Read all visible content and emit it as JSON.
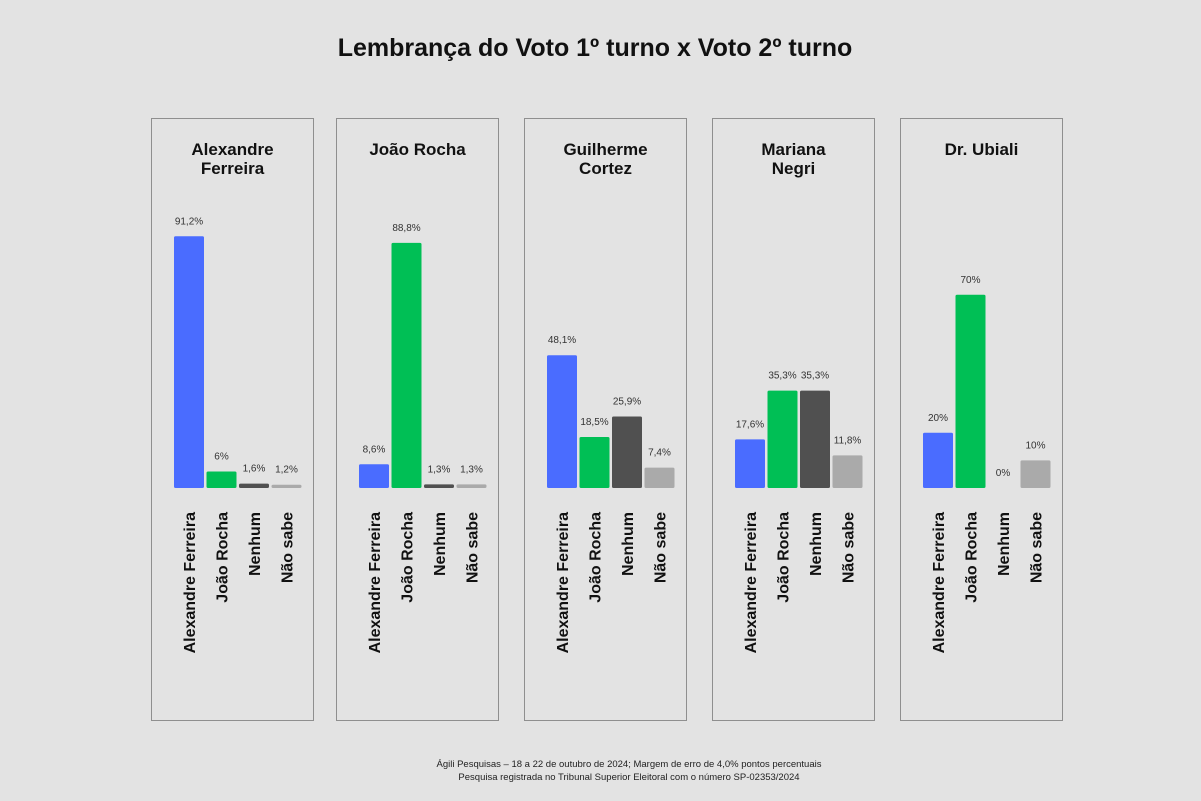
{
  "title": "Lembrança do Voto 1º turno x Voto 2º turno",
  "colors": {
    "alexandre": "#4a6cff",
    "joao": "#00bf55",
    "nenhum": "#505050",
    "nao_sabe": "#aaaaaa"
  },
  "chart_data": {
    "type": "bar",
    "title": "Lembrança do Voto 1º turno x Voto 2º turno",
    "categories": [
      "Alexandre Ferreira",
      "João Rocha",
      "Nenhum",
      "Não sabe"
    ],
    "ylim": [
      0,
      100
    ],
    "grid": false,
    "panels": [
      {
        "name": "Alexandre Ferreira",
        "title_lines": [
          "Alexandre",
          "Ferreira"
        ],
        "values": [
          91.2,
          6,
          1.6,
          1.2
        ],
        "labels": [
          "91,2%",
          "6%",
          "1,6%",
          "1,2%"
        ]
      },
      {
        "name": "João Rocha",
        "title_lines": [
          "João Rocha"
        ],
        "values": [
          8.6,
          88.8,
          1.3,
          1.3
        ],
        "labels": [
          "8,6%",
          "88,8%",
          "1,3%",
          "1,3%"
        ]
      },
      {
        "name": "Guilherme Cortez",
        "title_lines": [
          "Guilherme",
          "Cortez"
        ],
        "values": [
          48.1,
          18.5,
          25.9,
          7.4
        ],
        "labels": [
          "48,1%",
          "18,5%",
          "25,9%",
          "7,4%"
        ]
      },
      {
        "name": "Mariana Negri",
        "title_lines": [
          "Mariana",
          "Negri"
        ],
        "values": [
          17.6,
          35.3,
          35.3,
          11.8
        ],
        "labels": [
          "17,6%",
          "35,3%",
          "35,3%",
          "11,8%"
        ]
      },
      {
        "name": "Dr. Ubiali",
        "title_lines": [
          "Dr. Ubiali"
        ],
        "values": [
          20,
          70,
          0,
          10
        ],
        "labels": [
          "20%",
          "70%",
          "0%",
          "10%"
        ]
      }
    ]
  },
  "footer": {
    "line1": "Ágili Pesquisas – 18 a 22 de outubro de 2024; Margem de erro de 4,0% pontos percentuais",
    "line2": "Pesquisa registrada no Tribunal Superior Eleitoral com o número SP-02353/2024"
  }
}
